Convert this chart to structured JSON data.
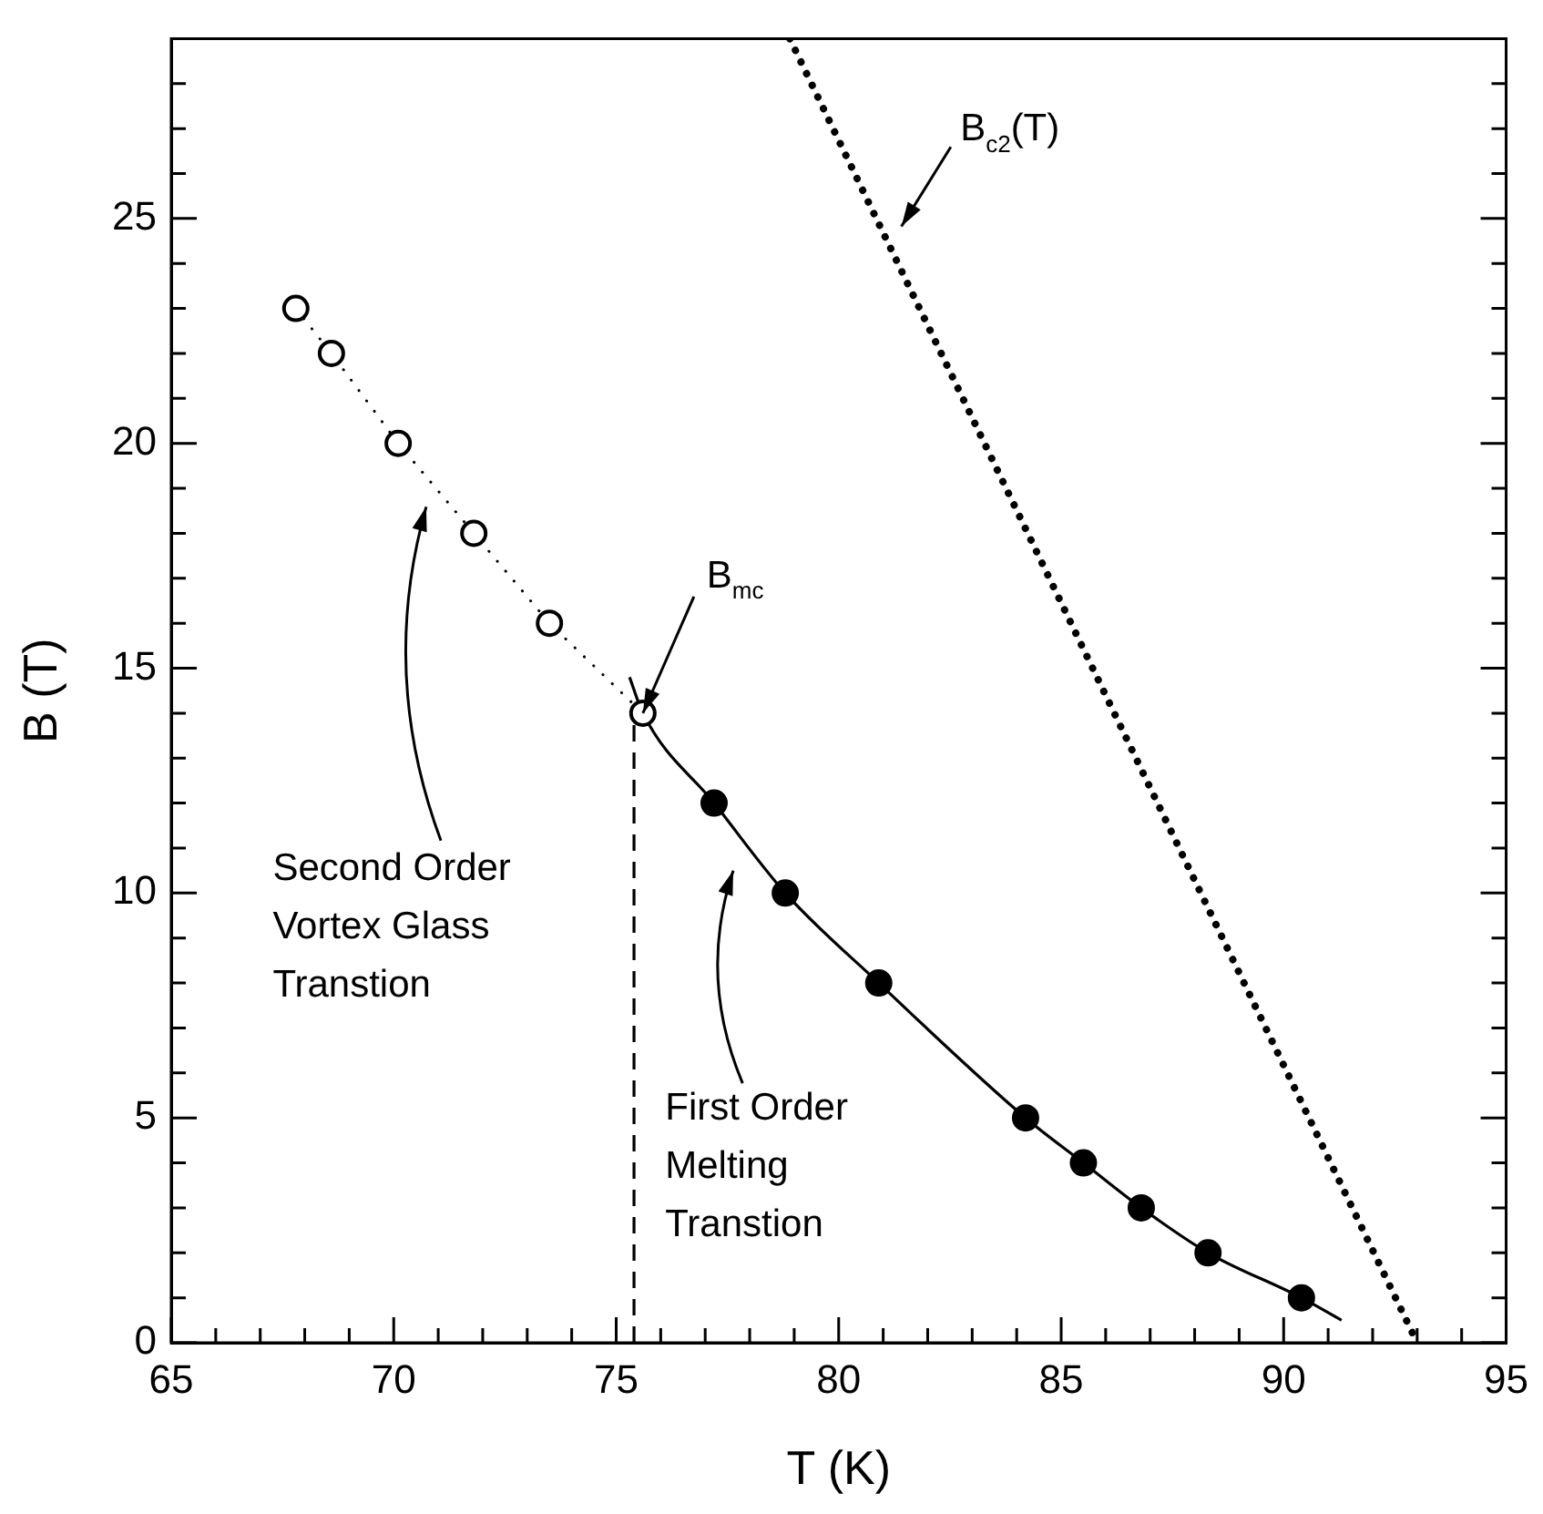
{
  "chart_data": {
    "type": "line",
    "xlabel": "T (K)",
    "ylabel": "B (T)",
    "xlim": [
      65,
      95
    ],
    "ylim": [
      0,
      29
    ],
    "xticks": [
      65,
      {
        "value": 66,
        "label": null
      },
      {
        "value": 67,
        "label": null
      },
      {
        "value": 68,
        "label": null
      },
      {
        "value": 69,
        "label": null
      },
      70,
      {
        "value": 71,
        "label": null
      },
      {
        "value": 72,
        "label": null
      },
      {
        "value": 73,
        "label": null
      },
      {
        "value": 74,
        "label": null
      },
      75,
      {
        "value": 76,
        "label": null
      },
      {
        "value": 77,
        "label": null
      },
      {
        "value": 78,
        "label": null
      },
      {
        "value": 79,
        "label": null
      },
      80,
      {
        "value": 81,
        "label": null
      },
      {
        "value": 82,
        "label": null
      },
      {
        "value": 83,
        "label": null
      },
      {
        "value": 84,
        "label": null
      },
      85,
      {
        "value": 86,
        "label": null
      },
      {
        "value": 87,
        "label": null
      },
      {
        "value": 88,
        "label": null
      },
      {
        "value": 89,
        "label": null
      },
      90,
      {
        "value": 91,
        "label": null
      },
      {
        "value": 92,
        "label": null
      },
      {
        "value": 93,
        "label": null
      },
      {
        "value": 94,
        "label": null
      },
      95
    ],
    "yticks": [
      0,
      {
        "value": 1,
        "label": null
      },
      {
        "value": 2,
        "label": null
      },
      {
        "value": 3,
        "label": null
      },
      {
        "value": 4,
        "label": null
      },
      5,
      {
        "value": 6,
        "label": null
      },
      {
        "value": 7,
        "label": null
      },
      {
        "value": 8,
        "label": null
      },
      {
        "value": 9,
        "label": null
      },
      10,
      {
        "value": 11,
        "label": null
      },
      {
        "value": 12,
        "label": null
      },
      {
        "value": 13,
        "label": null
      },
      {
        "value": 14,
        "label": null
      },
      15,
      {
        "value": 16,
        "label": null
      },
      {
        "value": 17,
        "label": null
      },
      {
        "value": 18,
        "label": null
      },
      {
        "value": 19,
        "label": null
      },
      20,
      {
        "value": 21,
        "label": null
      },
      {
        "value": 22,
        "label": null
      },
      {
        "value": 23,
        "label": null
      },
      {
        "value": 24,
        "label": null
      },
      25,
      {
        "value": 26,
        "label": null
      },
      {
        "value": 27,
        "label": null
      },
      {
        "value": 28,
        "label": null
      }
    ],
    "grid": false,
    "legend": false,
    "series": [
      {
        "type": "line",
        "color": "#000000",
        "marker": "circle",
        "line_style": "dotted",
        "x": [
          67.8,
          68.6,
          70.1,
          71.8,
          73.5,
          75.6
        ],
        "values": [
          23,
          22,
          20,
          18,
          16,
          14
        ]
      },
      {
        "type": "scatter",
        "color": "#000000",
        "marker": "circle",
        "x": [
          77.2,
          78.8,
          80.9,
          84.2,
          85.5,
          86.8,
          88.3,
          90.4
        ],
        "values": [
          12,
          10,
          8,
          5,
          4,
          3,
          2,
          1
        ]
      },
      {
        "type": "line",
        "color": "#000000",
        "marker": "none",
        "line_style": "solid",
        "x": [
          75.3,
          75.6,
          77.2,
          78.8,
          80.9,
          84.2,
          85.5,
          86.8,
          88.3,
          90.4,
          91.3
        ],
        "values": [
          14.8,
          14,
          12,
          10,
          8,
          5,
          4,
          3,
          2,
          1,
          0.5
        ]
      },
      {
        "type": "line",
        "color": "#000000",
        "marker": "none",
        "line_style": "dotted",
        "x": [
          78.9,
          93.0
        ],
        "values": [
          29,
          0
        ]
      },
      {
        "type": "line",
        "color": "#000000",
        "marker": "none",
        "line_style": "dashed",
        "x": [
          75.4,
          75.4
        ],
        "values": [
          0,
          14
        ]
      }
    ],
    "annotations": [
      "B$_{c2}$(T)",
      {
        "text": "B$_{mc}$",
        "x": 75.6,
        "y": 14
      },
      "Second Order Vortex Glass Transtion",
      "First Order Melting Transtion"
    ]
  }
}
